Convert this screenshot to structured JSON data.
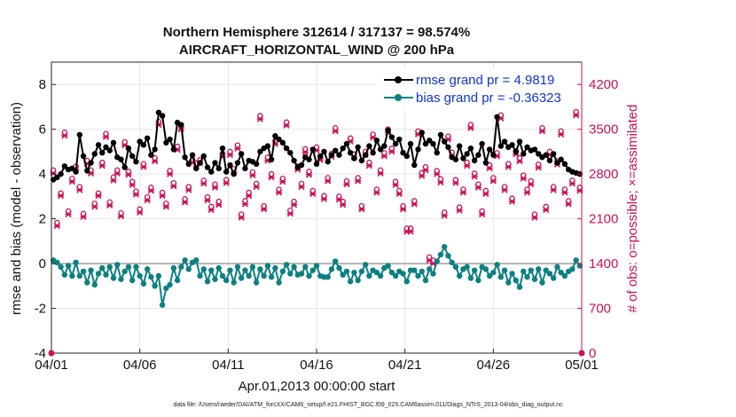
{
  "chart_data": {
    "type": "line",
    "title_line1": "Northern Hemisphere 312614 / 317137 = 98.574%",
    "title_line2": "AIRCRAFT_HORIZONTAL_WIND @ 200 hPa",
    "xlabel": "Apr.01,2013 00:00:00 start",
    "ylabel_left": "rmse and bias (model - observation)",
    "ylabel_right": "# of obs: o=possible; ×=assimilated",
    "xticks": [
      "04/01",
      "04/06",
      "04/11",
      "04/16",
      "04/21",
      "04/26",
      "05/01"
    ],
    "yticks_left": [
      "-4",
      "-2",
      "0",
      "2",
      "4",
      "6",
      "8"
    ],
    "yticks_right": [
      "0",
      "700",
      "1400",
      "2100",
      "2800",
      "3500",
      "4200"
    ],
    "xlim": [
      0,
      30
    ],
    "ylim_left": [
      -4,
      9
    ],
    "ylim_right": [
      0,
      4550
    ],
    "colors": {
      "rmse": "#000000",
      "bias": "#0d8080",
      "obs": "#cc1155",
      "legend_text": "#1133dd",
      "right_axis": "#cc1155",
      "zero_line": "#b3b3b3",
      "grid": "#e6e6e6"
    },
    "legend_position": "top-right",
    "series": [
      {
        "name": "rmse grand pr = 4.9819",
        "axis": "left",
        "values": [
          3.75,
          3.85,
          4.0,
          4.35,
          4.2,
          4.25,
          4.1,
          5.75,
          4.8,
          4.15,
          4.5,
          4.9,
          5.3,
          4.95,
          5.2,
          5.05,
          5.4,
          4.75,
          4.65,
          4.3,
          5.15,
          4.8,
          4.55,
          5.45,
          5.3,
          5.6,
          4.85,
          5.1,
          6.75,
          6.6,
          5.4,
          5.55,
          5.1,
          6.3,
          6.2,
          4.75,
          4.45,
          4.85,
          4.25,
          4.5,
          4.8,
          4.3,
          4.1,
          4.5,
          4.25,
          5.15,
          4.1,
          4.4,
          4.0,
          4.5,
          4.9,
          4.25,
          4.6,
          4.55,
          4.45,
          5.0,
          5.15,
          5.25,
          4.65,
          5.7,
          5.55,
          5.4,
          5.15,
          4.95,
          4.6,
          4.3,
          4.4,
          4.75,
          4.65,
          5.1,
          4.45,
          4.8,
          5.0,
          4.55,
          4.85,
          5.05,
          4.85,
          5.15,
          5.35,
          4.95,
          4.7,
          5.2,
          4.6,
          4.85,
          5.25,
          4.95,
          5.5,
          5.1,
          5.25,
          5.95,
          5.65,
          5.35,
          5.55,
          4.95,
          4.8,
          5.35,
          4.4,
          5.1,
          5.85,
          5.35,
          5.5,
          5.35,
          4.95,
          5.75,
          5.45,
          5.2,
          4.75,
          4.65,
          5.25,
          4.7,
          4.9,
          5.15,
          4.6,
          4.85,
          5.35,
          4.5,
          5.1,
          4.85,
          6.55,
          5.25,
          5.45,
          5.2,
          5.3,
          5.0,
          5.45,
          4.9,
          5.2,
          5.05,
          5.1,
          4.9,
          4.75,
          4.85,
          4.6,
          4.9,
          4.5,
          4.65,
          4.45,
          4.2,
          4.1,
          4.05,
          4.0
        ]
      },
      {
        "name": "bias grand pr = -0.36323",
        "axis": "left",
        "values": [
          0.15,
          0.05,
          -0.15,
          -0.5,
          -0.1,
          -0.55,
          0.05,
          -0.55,
          -0.35,
          -0.85,
          -0.3,
          -0.95,
          -0.45,
          -0.2,
          -0.5,
          -0.15,
          -0.65,
          -0.05,
          -0.7,
          -0.35,
          -0.15,
          -0.75,
          -0.15,
          -0.55,
          -0.9,
          -0.25,
          -0.6,
          -1.0,
          -0.55,
          -1.85,
          -1.1,
          -0.95,
          -0.2,
          -0.75,
          -0.15,
          0.15,
          -0.25,
          0.05,
          0.15,
          -0.55,
          -0.25,
          -0.8,
          -0.3,
          -0.7,
          -0.2,
          -0.55,
          -0.75,
          -0.3,
          -0.85,
          -0.15,
          -0.65,
          -0.3,
          -0.55,
          -0.15,
          -0.85,
          -0.25,
          -0.55,
          -0.1,
          -0.6,
          -0.2,
          -0.85,
          -0.35,
          -0.05,
          -0.45,
          -0.15,
          -0.5,
          -0.45,
          -0.15,
          -0.55,
          -0.3,
          -0.1,
          -0.55,
          -0.6,
          -0.6,
          -0.25,
          0.1,
          -0.2,
          -0.5,
          -0.35,
          -0.8,
          -0.4,
          -0.75,
          -0.35,
          -0.05,
          -0.55,
          -0.3,
          -0.4,
          -0.55,
          -0.2,
          -0.1,
          -0.4,
          -0.55,
          -0.35,
          -0.45,
          -0.8,
          -0.3,
          -0.3,
          -0.55,
          -0.35,
          -0.75,
          -0.25,
          -0.45,
          0.1,
          0.4,
          0.75,
          0.35,
          0.05,
          -0.15,
          -0.55,
          -0.25,
          -0.15,
          -0.65,
          -0.3,
          -0.75,
          -0.15,
          -0.25,
          -0.55,
          -0.4,
          -0.05,
          -0.6,
          -0.3,
          -0.85,
          -0.45,
          -0.75,
          -1.05,
          -0.35,
          -0.6,
          -0.3,
          -0.7,
          -0.25,
          -0.85,
          -0.3,
          -0.45,
          -0.65,
          -0.15,
          -0.4,
          -0.55,
          -0.35,
          -0.25,
          0.15,
          -0.1
        ]
      },
      {
        "name": "obs possible",
        "axis": "right",
        "values": [
          2860,
          2040,
          2500,
          3450,
          2220,
          2730,
          2920,
          2600,
          2180,
          3010,
          2860,
          2340,
          2500,
          2980,
          3430,
          2360,
          2750,
          2860,
          2190,
          3300,
          2840,
          2680,
          2530,
          2250,
          2960,
          2440,
          2590,
          3050,
          3620,
          2510,
          2340,
          2850,
          2660,
          3230,
          3550,
          2410,
          2600,
          3030,
          2970,
          3020,
          2700,
          2440,
          2290,
          2640,
          2370,
          3120,
          2710,
          3150,
          2880,
          3250,
          2170,
          2380,
          2510,
          2830,
          2650,
          3710,
          2300,
          3060,
          2800,
          3320,
          2560,
          2730,
          3610,
          2230,
          2370,
          2920,
          2650,
          3190,
          2840,
          2540,
          3220,
          3070,
          2460,
          2740,
          3120,
          3520,
          2450,
          2370,
          2690,
          3360,
          3110,
          2740,
          2300,
          3150,
          2980,
          3420,
          2560,
          2860,
          3130,
          3500,
          3200,
          2680,
          2540,
          2300,
          1950,
          1950,
          2380,
          3470,
          2820,
          2910,
          1500,
          1450,
          2850,
          2720,
          2200,
          3390,
          3140,
          2710,
          2280,
          2560,
          2980,
          3570,
          2810,
          2640,
          2220,
          2540,
          2940,
          2740,
          3130,
          3720,
          2600,
          2960,
          2420,
          3160,
          3050,
          2780,
          2560,
          2690,
          2170,
          2950,
          3520,
          2290,
          3150,
          2600,
          3000,
          3470,
          2560,
          2380,
          2700,
          3770,
          2590
        ]
      },
      {
        "name": "obs assimilated",
        "axis": "right",
        "values": [
          2810,
          1990,
          2460,
          3400,
          2170,
          2680,
          2870,
          2550,
          2130,
          2960,
          2810,
          2290,
          2460,
          2930,
          3380,
          2310,
          2700,
          2810,
          2140,
          3250,
          2790,
          2630,
          2480,
          2200,
          2910,
          2390,
          2540,
          3000,
          3570,
          2460,
          2290,
          2800,
          2610,
          3180,
          3500,
          2360,
          2550,
          2980,
          2920,
          2970,
          2650,
          2390,
          2240,
          2590,
          2320,
          3070,
          2660,
          3100,
          2830,
          3200,
          2120,
          2330,
          2460,
          2780,
          2600,
          3660,
          2250,
          3010,
          2750,
          3270,
          2510,
          2680,
          3560,
          2180,
          2320,
          2870,
          2600,
          3140,
          2790,
          2490,
          3170,
          3020,
          2410,
          2690,
          3070,
          3470,
          2400,
          2320,
          2640,
          3310,
          3060,
          2690,
          2250,
          3100,
          2930,
          3370,
          2510,
          2810,
          3080,
          3450,
          3150,
          2630,
          2490,
          2250,
          1900,
          1900,
          2330,
          3420,
          2770,
          2860,
          1450,
          1400,
          2800,
          2670,
          2150,
          3340,
          3090,
          2660,
          2230,
          2510,
          2930,
          3520,
          2760,
          2590,
          2170,
          2490,
          2890,
          2690,
          3080,
          3670,
          2550,
          2910,
          2370,
          3110,
          3000,
          2730,
          2510,
          2640,
          2120,
          2900,
          3470,
          2240,
          3100,
          2550,
          2950,
          3420,
          2510,
          2330,
          2650,
          3720,
          2540
        ]
      }
    ],
    "footer": "data file: /Users/raeder/DAI/ATM_forcXX/CAM6_setup/f.e21.FHIST_BGC.f09_025.CAM6assim.011/Diags_NTrS_2013-04/obs_diag_output.nc"
  }
}
